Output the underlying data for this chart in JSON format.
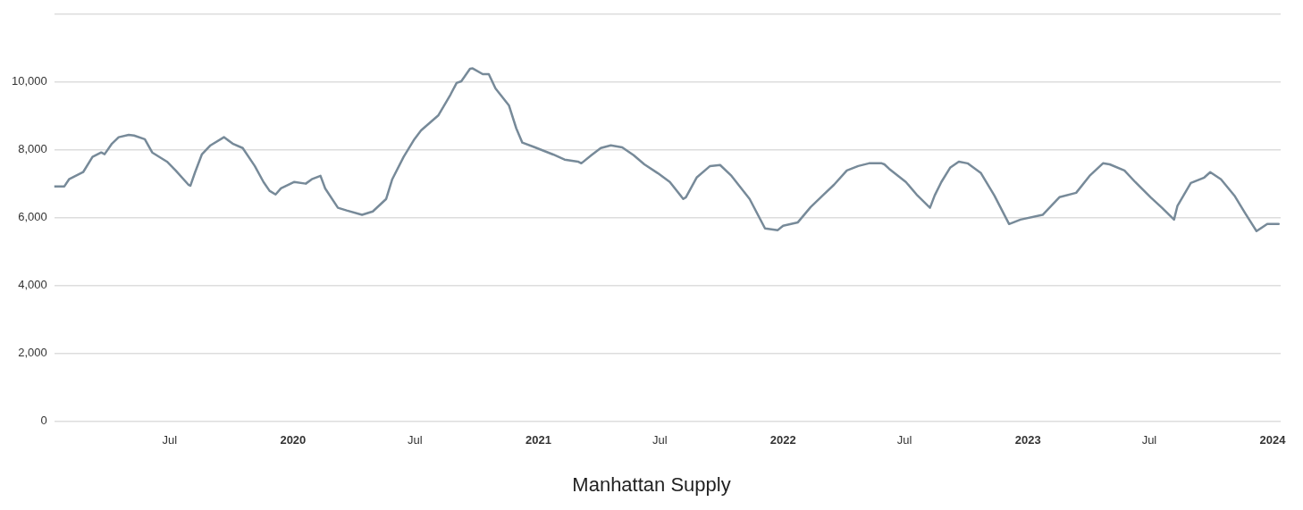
{
  "chart_data": {
    "type": "line",
    "annotations": [
      "Manhattan Supply"
    ],
    "xlim": [
      "2019-01-10",
      "2024-01-13"
    ],
    "xticks": [
      {
        "value": "2019-07-01",
        "label": "Jul"
      },
      {
        "value": "2020-01-01",
        "label": "2020"
      },
      {
        "value": "2020-07-01",
        "label": "Jul"
      },
      {
        "value": "2021-01-01",
        "label": "2021"
      },
      {
        "value": "2021-07-01",
        "label": "Jul"
      },
      {
        "value": "2022-01-01",
        "label": "2022"
      },
      {
        "value": "2022-07-01",
        "label": "Jul"
      },
      {
        "value": "2023-01-01",
        "label": "2023"
      },
      {
        "value": "2023-07-01",
        "label": "Jul"
      },
      {
        "value": "2024-01-01",
        "label": "2024"
      }
    ],
    "ylim": [
      0,
      12000
    ],
    "yticks": [
      0,
      {
        "value": 2000,
        "label": "2,000"
      },
      {
        "value": 4000,
        "label": "4,000"
      },
      {
        "value": 6000,
        "label": "6,000"
      },
      {
        "value": 8000,
        "label": "8,000"
      },
      {
        "value": 10000,
        "label": "10,000"
      },
      {
        "value": 12000,
        "label": null
      }
    ],
    "grid": "y",
    "legend": false,
    "marker": "none",
    "line_style": "solid",
    "series": [
      {
        "color": "#778a99",
        "x": [
          "2019-01-10",
          "2019-01-25",
          "2019-02-01",
          "2019-02-22",
          "2019-03-08",
          "2019-03-21",
          "2019-03-26",
          "2019-04-06",
          "2019-04-16",
          "2019-05-01",
          "2019-05-09",
          "2019-05-25",
          "2019-06-05",
          "2019-06-27",
          "2019-07-10",
          "2019-07-29",
          "2019-08-01",
          "2019-08-08",
          "2019-08-18",
          "2019-08-31",
          "2019-09-20",
          "2019-10-03",
          "2019-10-18",
          "2019-11-05",
          "2019-11-18",
          "2019-11-27",
          "2019-12-06",
          "2019-12-14",
          "2020-01-03",
          "2020-01-20",
          "2020-01-29",
          "2020-02-11",
          "2020-02-18",
          "2020-03-08",
          "2020-03-21",
          "2020-04-13",
          "2020-04-29",
          "2020-05-19",
          "2020-05-28",
          "2020-06-14",
          "2020-06-30",
          "2020-07-10",
          "2020-08-05",
          "2020-08-23",
          "2020-09-01",
          "2020-09-08",
          "2020-09-21",
          "2020-09-25",
          "2020-10-10",
          "2020-10-19",
          "2020-10-29",
          "2020-11-18",
          "2020-11-29",
          "2020-12-08",
          "2020-12-27",
          "2021-01-23",
          "2021-02-09",
          "2021-03-01",
          "2021-03-06",
          "2021-03-21",
          "2021-04-04",
          "2021-04-19",
          "2021-05-06",
          "2021-05-23",
          "2021-06-08",
          "2021-06-28",
          "2021-07-16",
          "2021-08-05",
          "2021-08-09",
          "2021-08-25",
          "2021-09-14",
          "2021-09-29",
          "2021-10-16",
          "2021-11-12",
          "2021-12-05",
          "2021-12-24",
          "2022-01-01",
          "2022-01-23",
          "2022-02-11",
          "2022-03-01",
          "2022-03-18",
          "2022-04-06",
          "2022-04-23",
          "2022-05-09",
          "2022-05-28",
          "2022-06-01",
          "2022-06-08",
          "2022-07-03",
          "2022-07-19",
          "2022-08-08",
          "2022-08-15",
          "2022-08-25",
          "2022-09-07",
          "2022-09-20",
          "2022-10-03",
          "2022-10-23",
          "2022-11-12",
          "2022-12-04",
          "2022-12-21",
          "2023-01-23",
          "2023-02-17",
          "2023-03-14",
          "2023-04-03",
          "2023-04-23",
          "2023-05-03",
          "2023-05-25",
          "2023-06-10",
          "2023-07-03",
          "2023-07-20",
          "2023-08-07",
          "2023-08-12",
          "2023-09-01",
          "2023-09-21",
          "2023-09-30",
          "2023-10-16",
          "2023-11-05",
          "2023-11-21",
          "2023-12-08",
          "2023-12-24",
          "2024-01-10"
        ],
        "values": [
          6920,
          6920,
          7130,
          7340,
          7790,
          7920,
          7870,
          8180,
          8370,
          8440,
          8420,
          8310,
          7920,
          7650,
          7390,
          6970,
          6940,
          7340,
          7860,
          8130,
          8370,
          8180,
          8050,
          7520,
          7050,
          6790,
          6680,
          6860,
          7050,
          7000,
          7130,
          7230,
          6860,
          6290,
          6210,
          6080,
          6180,
          6550,
          7130,
          7790,
          8310,
          8570,
          9020,
          9630,
          9970,
          10020,
          10390,
          10400,
          10230,
          10230,
          9810,
          9310,
          8630,
          8210,
          8070,
          7860,
          7710,
          7650,
          7600,
          7840,
          8050,
          8130,
          8070,
          7840,
          7570,
          7310,
          7050,
          6550,
          6600,
          7180,
          7520,
          7550,
          7230,
          6550,
          5680,
          5630,
          5760,
          5860,
          6310,
          6650,
          6970,
          7390,
          7520,
          7600,
          7600,
          7570,
          7440,
          7050,
          6680,
          6290,
          6650,
          7050,
          7470,
          7650,
          7600,
          7310,
          6650,
          5810,
          5940,
          6080,
          6600,
          6730,
          7230,
          7600,
          7570,
          7390,
          7050,
          6600,
          6290,
          5940,
          6340,
          7020,
          7180,
          7340,
          7130,
          6650,
          6130,
          5600,
          5810,
          5810
        ]
      }
    ]
  }
}
